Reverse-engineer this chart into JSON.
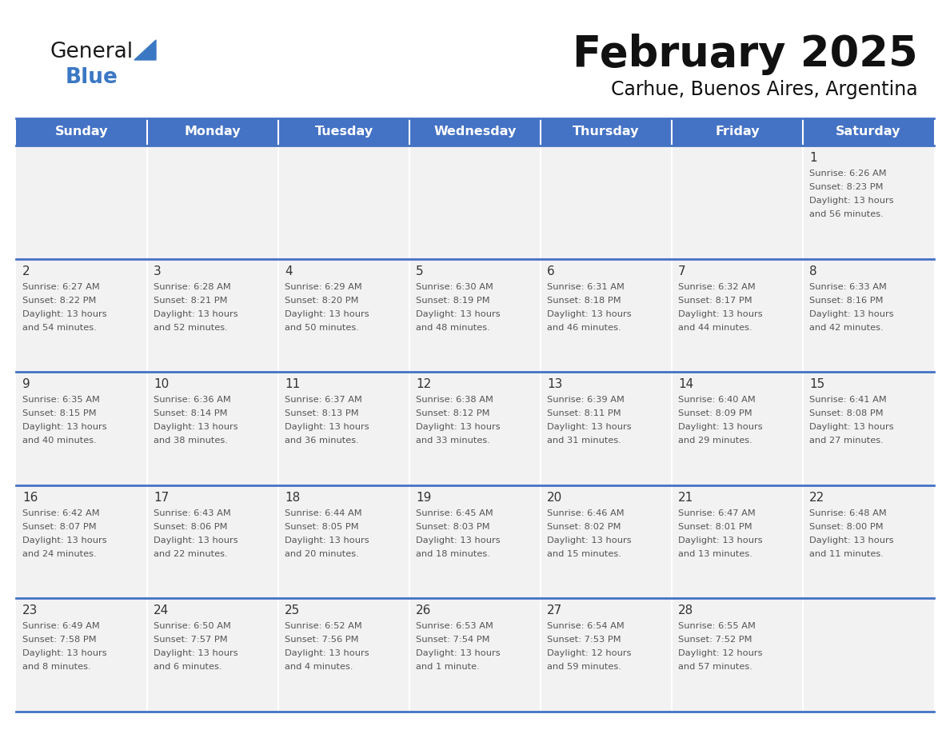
{
  "title": "February 2025",
  "subtitle": "Carhue, Buenos Aires, Argentina",
  "header_bg": "#4472C4",
  "header_text": "#FFFFFF",
  "cell_bg": "#F2F2F2",
  "cell_bg_white": "#FFFFFF",
  "border_color": "#4472C4",
  "text_day_color": "#333333",
  "text_info_color": "#555555",
  "day_headers": [
    "Sunday",
    "Monday",
    "Tuesday",
    "Wednesday",
    "Thursday",
    "Friday",
    "Saturday"
  ],
  "logo_general_color": "#1a1a1a",
  "logo_blue_color": "#3B78C3",
  "logo_triangle_color": "#3B78C3",
  "title_color": "#111111",
  "subtitle_color": "#111111",
  "calendar_data": [
    [
      {
        "day": "",
        "sunrise": "",
        "sunset": "",
        "daylight": ""
      },
      {
        "day": "",
        "sunrise": "",
        "sunset": "",
        "daylight": ""
      },
      {
        "day": "",
        "sunrise": "",
        "sunset": "",
        "daylight": ""
      },
      {
        "day": "",
        "sunrise": "",
        "sunset": "",
        "daylight": ""
      },
      {
        "day": "",
        "sunrise": "",
        "sunset": "",
        "daylight": ""
      },
      {
        "day": "",
        "sunrise": "",
        "sunset": "",
        "daylight": ""
      },
      {
        "day": "1",
        "sunrise": "6:26 AM",
        "sunset": "8:23 PM",
        "daylight": "13 hours\nand 56 minutes."
      }
    ],
    [
      {
        "day": "2",
        "sunrise": "6:27 AM",
        "sunset": "8:22 PM",
        "daylight": "13 hours\nand 54 minutes."
      },
      {
        "day": "3",
        "sunrise": "6:28 AM",
        "sunset": "8:21 PM",
        "daylight": "13 hours\nand 52 minutes."
      },
      {
        "day": "4",
        "sunrise": "6:29 AM",
        "sunset": "8:20 PM",
        "daylight": "13 hours\nand 50 minutes."
      },
      {
        "day": "5",
        "sunrise": "6:30 AM",
        "sunset": "8:19 PM",
        "daylight": "13 hours\nand 48 minutes."
      },
      {
        "day": "6",
        "sunrise": "6:31 AM",
        "sunset": "8:18 PM",
        "daylight": "13 hours\nand 46 minutes."
      },
      {
        "day": "7",
        "sunrise": "6:32 AM",
        "sunset": "8:17 PM",
        "daylight": "13 hours\nand 44 minutes."
      },
      {
        "day": "8",
        "sunrise": "6:33 AM",
        "sunset": "8:16 PM",
        "daylight": "13 hours\nand 42 minutes."
      }
    ],
    [
      {
        "day": "9",
        "sunrise": "6:35 AM",
        "sunset": "8:15 PM",
        "daylight": "13 hours\nand 40 minutes."
      },
      {
        "day": "10",
        "sunrise": "6:36 AM",
        "sunset": "8:14 PM",
        "daylight": "13 hours\nand 38 minutes."
      },
      {
        "day": "11",
        "sunrise": "6:37 AM",
        "sunset": "8:13 PM",
        "daylight": "13 hours\nand 36 minutes."
      },
      {
        "day": "12",
        "sunrise": "6:38 AM",
        "sunset": "8:12 PM",
        "daylight": "13 hours\nand 33 minutes."
      },
      {
        "day": "13",
        "sunrise": "6:39 AM",
        "sunset": "8:11 PM",
        "daylight": "13 hours\nand 31 minutes."
      },
      {
        "day": "14",
        "sunrise": "6:40 AM",
        "sunset": "8:09 PM",
        "daylight": "13 hours\nand 29 minutes."
      },
      {
        "day": "15",
        "sunrise": "6:41 AM",
        "sunset": "8:08 PM",
        "daylight": "13 hours\nand 27 minutes."
      }
    ],
    [
      {
        "day": "16",
        "sunrise": "6:42 AM",
        "sunset": "8:07 PM",
        "daylight": "13 hours\nand 24 minutes."
      },
      {
        "day": "17",
        "sunrise": "6:43 AM",
        "sunset": "8:06 PM",
        "daylight": "13 hours\nand 22 minutes."
      },
      {
        "day": "18",
        "sunrise": "6:44 AM",
        "sunset": "8:05 PM",
        "daylight": "13 hours\nand 20 minutes."
      },
      {
        "day": "19",
        "sunrise": "6:45 AM",
        "sunset": "8:03 PM",
        "daylight": "13 hours\nand 18 minutes."
      },
      {
        "day": "20",
        "sunrise": "6:46 AM",
        "sunset": "8:02 PM",
        "daylight": "13 hours\nand 15 minutes."
      },
      {
        "day": "21",
        "sunrise": "6:47 AM",
        "sunset": "8:01 PM",
        "daylight": "13 hours\nand 13 minutes."
      },
      {
        "day": "22",
        "sunrise": "6:48 AM",
        "sunset": "8:00 PM",
        "daylight": "13 hours\nand 11 minutes."
      }
    ],
    [
      {
        "day": "23",
        "sunrise": "6:49 AM",
        "sunset": "7:58 PM",
        "daylight": "13 hours\nand 8 minutes."
      },
      {
        "day": "24",
        "sunrise": "6:50 AM",
        "sunset": "7:57 PM",
        "daylight": "13 hours\nand 6 minutes."
      },
      {
        "day": "25",
        "sunrise": "6:52 AM",
        "sunset": "7:56 PM",
        "daylight": "13 hours\nand 4 minutes."
      },
      {
        "day": "26",
        "sunrise": "6:53 AM",
        "sunset": "7:54 PM",
        "daylight": "13 hours\nand 1 minute."
      },
      {
        "day": "27",
        "sunrise": "6:54 AM",
        "sunset": "7:53 PM",
        "daylight": "12 hours\nand 59 minutes."
      },
      {
        "day": "28",
        "sunrise": "6:55 AM",
        "sunset": "7:52 PM",
        "daylight": "12 hours\nand 57 minutes."
      },
      {
        "day": "",
        "sunrise": "",
        "sunset": "",
        "daylight": ""
      }
    ]
  ]
}
